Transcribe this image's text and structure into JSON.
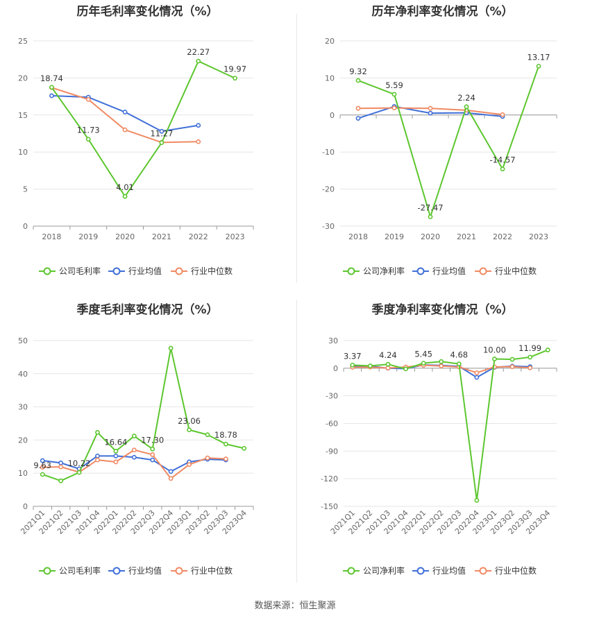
{
  "source_label": "数据来源：恒生聚源",
  "colors": {
    "company": "#5cc62e",
    "industry_avg": "#3f6fd8",
    "industry_median": "#f08a63",
    "grid": "#e6e6e6",
    "axis": "#999999"
  },
  "chart_data": [
    {
      "id": "annual-gross",
      "type": "line",
      "title": "历年毛利率变化情况（%）",
      "categories": [
        "2018",
        "2019",
        "2020",
        "2021",
        "2022",
        "2023"
      ],
      "ylim": [
        0,
        25
      ],
      "yticks": [
        0,
        5,
        10,
        15,
        20,
        25
      ],
      "rotate_x": false,
      "series": [
        {
          "name": "公司毛利率",
          "key": "company",
          "values": [
            18.74,
            11.73,
            4.01,
            11.27,
            22.27,
            19.97
          ],
          "labels": [
            "18.74",
            "11.73",
            "4.01",
            "11.27",
            "22.27",
            "19.97"
          ]
        },
        {
          "name": "行业均值",
          "key": "industry_avg",
          "values": [
            17.6,
            17.4,
            15.4,
            12.8,
            13.6,
            null
          ]
        },
        {
          "name": "行业中位数",
          "key": "industry_median",
          "values": [
            18.7,
            17.1,
            13.0,
            11.3,
            11.4,
            null
          ]
        }
      ]
    },
    {
      "id": "annual-net",
      "type": "line",
      "title": "历年净利率变化情况（%）",
      "categories": [
        "2018",
        "2019",
        "2020",
        "2021",
        "2022",
        "2023"
      ],
      "ylim": [
        -30,
        20
      ],
      "yticks": [
        -30,
        -20,
        -10,
        0,
        10,
        20
      ],
      "rotate_x": false,
      "series": [
        {
          "name": "公司净利率",
          "key": "company",
          "values": [
            9.32,
            5.59,
            -27.47,
            2.24,
            -14.57,
            13.17
          ],
          "labels": [
            "9.32",
            "5.59",
            "-27.47",
            "2.24",
            "-14.57",
            "13.17"
          ]
        },
        {
          "name": "行业均值",
          "key": "industry_avg",
          "values": [
            -0.9,
            2.3,
            0.5,
            0.6,
            -0.4,
            null
          ]
        },
        {
          "name": "行业中位数",
          "key": "industry_median",
          "values": [
            1.8,
            1.9,
            1.8,
            1.3,
            0.1,
            null
          ]
        }
      ]
    },
    {
      "id": "quarterly-gross",
      "type": "line",
      "title": "季度毛利率变化情况（%）",
      "categories": [
        "2021Q1",
        "2021Q2",
        "2021Q3",
        "2021Q4",
        "2022Q1",
        "2022Q2",
        "2022Q3",
        "2022Q4",
        "2023Q1",
        "2023Q2",
        "2023Q3",
        "2023Q4"
      ],
      "ylim": [
        0,
        50
      ],
      "yticks": [
        0,
        10,
        20,
        30,
        40,
        50
      ],
      "rotate_x": true,
      "series": [
        {
          "name": "公司毛利率",
          "key": "company",
          "values": [
            9.63,
            7.7,
            10.22,
            22.3,
            16.64,
            21.2,
            17.3,
            47.7,
            23.06,
            21.6,
            18.78,
            17.5
          ],
          "labels": [
            "9.63",
            null,
            "10.22",
            null,
            "16.64",
            null,
            "17.30",
            null,
            "23.06",
            null,
            "18.78",
            null
          ]
        },
        {
          "name": "行业均值",
          "key": "industry_avg",
          "values": [
            13.8,
            13.1,
            11.3,
            15.2,
            15.2,
            14.8,
            14.0,
            10.5,
            13.4,
            14.2,
            14.0,
            null
          ]
        },
        {
          "name": "行业中位数",
          "key": "industry_median",
          "values": [
            11.8,
            11.9,
            10.3,
            14.0,
            13.4,
            17.0,
            15.6,
            8.4,
            12.6,
            14.6,
            14.3,
            null
          ]
        }
      ]
    },
    {
      "id": "quarterly-net",
      "type": "line",
      "title": "季度净利率变化情况（%）",
      "categories": [
        "2021Q1",
        "2021Q2",
        "2021Q3",
        "2021Q4",
        "2022Q1",
        "2022Q2",
        "2022Q3",
        "2022Q4",
        "2023Q1",
        "2023Q2",
        "2023Q3",
        "2023Q4"
      ],
      "ylim": [
        -150,
        30
      ],
      "yticks": [
        -150,
        -120,
        -90,
        -60,
        -30,
        0,
        30
      ],
      "rotate_x": true,
      "series": [
        {
          "name": "公司净利率",
          "key": "company",
          "values": [
            3.37,
            2.5,
            4.24,
            -0.8,
            5.45,
            7.2,
            4.68,
            -143.5,
            10.0,
            9.6,
            11.99,
            19.8
          ],
          "labels": [
            "3.37",
            null,
            "4.24",
            null,
            "5.45",
            null,
            "4.68",
            null,
            "10.00",
            null,
            "11.99",
            null
          ]
        },
        {
          "name": "行业均值",
          "key": "industry_avg",
          "values": [
            2.3,
            2.2,
            0.0,
            -0.5,
            3.5,
            3.0,
            2.0,
            -10.0,
            1.0,
            2.2,
            1.6,
            null
          ]
        },
        {
          "name": "行业中位数",
          "key": "industry_median",
          "values": [
            1.0,
            1.2,
            0.2,
            1.3,
            3.2,
            2.4,
            1.4,
            -5.0,
            1.4,
            1.6,
            0.4,
            null
          ]
        }
      ]
    }
  ]
}
